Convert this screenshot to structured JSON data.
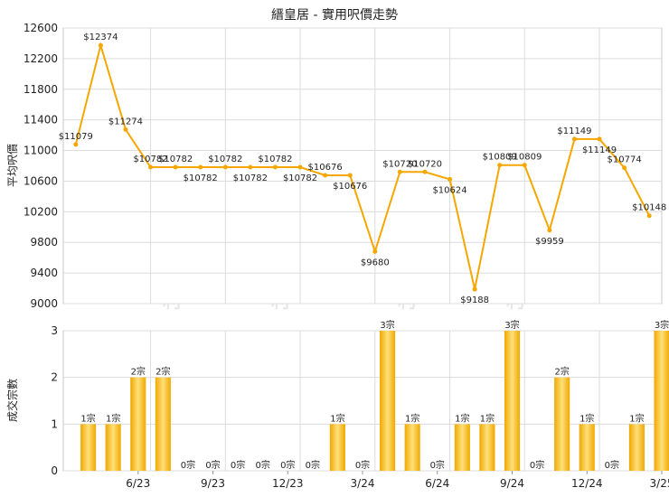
{
  "chart_data": [
    {
      "type": "line",
      "title": "縉皇居 - 實用呎價走勢",
      "ylabel": "平均呎價",
      "ylim": [
        9000,
        12600
      ],
      "yticks": [
        9000,
        9400,
        9800,
        10200,
        10600,
        11000,
        11400,
        11800,
        12200,
        12600
      ],
      "grid": true,
      "line_color": "#f5a700",
      "points": [
        {
          "x": "2023-03",
          "y": 11079,
          "label": "$11079"
        },
        {
          "x": "2023-04",
          "y": 12374,
          "label": "$12374"
        },
        {
          "x": "2023-05",
          "y": 11274,
          "label": "$11274"
        },
        {
          "x": "2023-06",
          "y": 10782,
          "label": "$10782"
        },
        {
          "x": "2023-07",
          "y": 10782,
          "label": "$10782"
        },
        {
          "x": "2023-08",
          "y": 10782,
          "label": "$10782"
        },
        {
          "x": "2023-09",
          "y": 10782,
          "label": "$10782"
        },
        {
          "x": "2023-10",
          "y": 10782,
          "label": "$10782"
        },
        {
          "x": "2023-11",
          "y": 10782,
          "label": "$10782"
        },
        {
          "x": "2023-12",
          "y": 10782,
          "label": "$10782"
        },
        {
          "x": "2024-01",
          "y": 10676,
          "label": "$10676"
        },
        {
          "x": "2024-02",
          "y": 10676,
          "label": "$10676"
        },
        {
          "x": "2024-03",
          "y": 9680,
          "label": "$9680"
        },
        {
          "x": "2024-04",
          "y": 10720,
          "label": "$10720"
        },
        {
          "x": "2024-05",
          "y": 10720,
          "label": "$10720"
        },
        {
          "x": "2024-06",
          "y": 10624,
          "label": "$10624"
        },
        {
          "x": "2024-07",
          "y": 9188,
          "label": "$9188"
        },
        {
          "x": "2024-08",
          "y": 10809,
          "label": "$10809"
        },
        {
          "x": "2024-09",
          "y": 10809,
          "label": "$10809"
        },
        {
          "x": "2024-10",
          "y": 9959,
          "label": "$9959"
        },
        {
          "x": "2024-11",
          "y": 11149,
          "label": "$11149"
        },
        {
          "x": "2024-12",
          "y": 11149,
          "label": "$11149"
        },
        {
          "x": "2025-01",
          "y": 10774,
          "label": "$10774"
        },
        {
          "x": "2025-02",
          "y": 10148,
          "label": "$10148"
        }
      ]
    },
    {
      "type": "bar",
      "ylabel": "成交宗數",
      "ylim": [
        0,
        3
      ],
      "yticks": [
        0,
        1,
        2,
        3
      ],
      "grid": true,
      "bar_color": "#f5a700",
      "bars": [
        {
          "x": "2023-04",
          "value": 1,
          "label": "1宗"
        },
        {
          "x": "2023-05",
          "value": 1,
          "label": "1宗"
        },
        {
          "x": "2023-06",
          "value": 2,
          "label": "2宗"
        },
        {
          "x": "2023-07",
          "value": 2,
          "label": "2宗"
        },
        {
          "x": "2023-08",
          "value": 0,
          "label": "0宗"
        },
        {
          "x": "2023-09",
          "value": 0,
          "label": "0宗"
        },
        {
          "x": "2023-10",
          "value": 0,
          "label": "0宗"
        },
        {
          "x": "2023-11",
          "value": 0,
          "label": "0宗"
        },
        {
          "x": "2023-12",
          "value": 0,
          "label": "0宗"
        },
        {
          "x": "2024-01",
          "value": 0,
          "label": "0宗"
        },
        {
          "x": "2024-02",
          "value": 1,
          "label": "1宗"
        },
        {
          "x": "2024-03",
          "value": 0,
          "label": "0宗"
        },
        {
          "x": "2024-04",
          "value": 3,
          "label": "3宗"
        },
        {
          "x": "2024-05",
          "value": 1,
          "label": "1宗"
        },
        {
          "x": "2024-06",
          "value": 0,
          "label": "0宗"
        },
        {
          "x": "2024-07",
          "value": 1,
          "label": "1宗"
        },
        {
          "x": "2024-08",
          "value": 1,
          "label": "1宗"
        },
        {
          "x": "2024-09",
          "value": 3,
          "label": "3宗"
        },
        {
          "x": "2024-10",
          "value": 0,
          "label": "0宗"
        },
        {
          "x": "2024-11",
          "value": 2,
          "label": "2宗"
        },
        {
          "x": "2024-12",
          "value": 1,
          "label": "1宗"
        },
        {
          "x": "2025-01",
          "value": 0,
          "label": "0宗"
        },
        {
          "x": "2025-02",
          "value": 1,
          "label": "1宗"
        },
        {
          "x": "2025-03",
          "value": 3,
          "label": "3宗"
        }
      ]
    }
  ],
  "x_axis": {
    "ticks": [
      {
        "x": "2023-06",
        "label": "6/23"
      },
      {
        "x": "2023-09",
        "label": "9/23"
      },
      {
        "x": "2023-12",
        "label": "12/23"
      },
      {
        "x": "2024-03",
        "label": "3/24"
      },
      {
        "x": "2024-06",
        "label": "6/24"
      },
      {
        "x": "2024-09",
        "label": "9/24"
      },
      {
        "x": "2024-12",
        "label": "12/24"
      },
      {
        "x": "2025-03",
        "label": "3/25"
      }
    ]
  }
}
